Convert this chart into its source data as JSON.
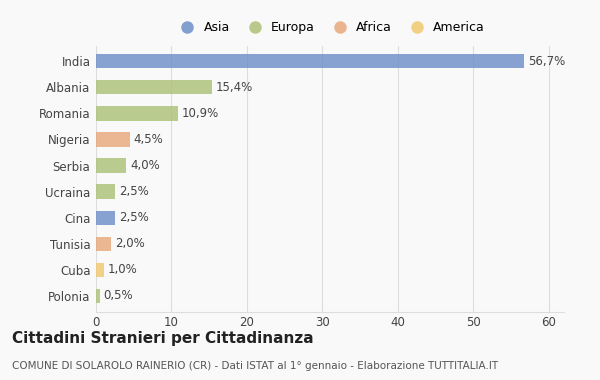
{
  "countries": [
    "India",
    "Albania",
    "Romania",
    "Nigeria",
    "Serbia",
    "Ucraina",
    "Cina",
    "Tunisia",
    "Cuba",
    "Polonia"
  ],
  "values": [
    56.7,
    15.4,
    10.9,
    4.5,
    4.0,
    2.5,
    2.5,
    2.0,
    1.0,
    0.5
  ],
  "labels": [
    "56,7%",
    "15,4%",
    "10,9%",
    "4,5%",
    "4,0%",
    "2,5%",
    "2,5%",
    "2,0%",
    "1,0%",
    "0,5%"
  ],
  "colors": [
    "#6e8fc9",
    "#adc178",
    "#adc178",
    "#e8a87c",
    "#adc178",
    "#adc178",
    "#6e8fc9",
    "#e8a87c",
    "#f0c96e",
    "#adc178"
  ],
  "legend_labels": [
    "Asia",
    "Europa",
    "Africa",
    "America"
  ],
  "legend_colors": [
    "#6e8fc9",
    "#adc178",
    "#e8a87c",
    "#f0c96e"
  ],
  "xlim": [
    0,
    62
  ],
  "xticks": [
    0,
    10,
    20,
    30,
    40,
    50,
    60
  ],
  "title": "Cittadini Stranieri per Cittadinanza",
  "subtitle": "COMUNE DI SOLAROLO RAINERIO (CR) - Dati ISTAT al 1° gennaio - Elaborazione TUTTITALIA.IT",
  "background_color": "#f9f9f9",
  "bar_height": 0.55,
  "grid_color": "#dddddd",
  "label_fontsize": 8.5,
  "ytick_fontsize": 8.5,
  "xtick_fontsize": 8.5,
  "title_fontsize": 11,
  "subtitle_fontsize": 7.5
}
